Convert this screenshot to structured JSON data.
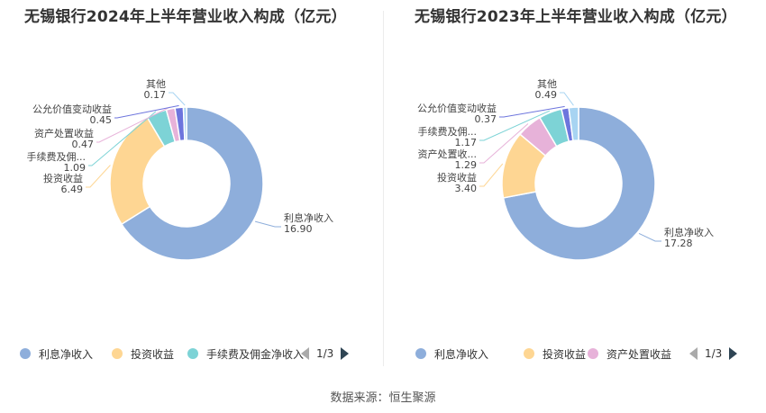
{
  "footer": {
    "source": "数据来源：恒生聚源"
  },
  "colors": {
    "利息净收入": "#8eaedb",
    "投资收益": "#fed693",
    "手续费及佣金净收入": "#7dd3d6",
    "资产处置收益": "#e7b2d9",
    "公允价值变动收益": "#6d75dd",
    "其他": "#a8d4f2"
  },
  "charts": [
    {
      "title": "无锡银行2024年上半年营业收入构成（亿元）",
      "legend": {
        "items": [
          "利息净收入",
          "投资收益",
          "手续费及佣金净收入"
        ],
        "page": "1/3"
      },
      "labels": [
        {
          "name": "利息净收入",
          "display": "利息净收入",
          "value": "16.90"
        },
        {
          "name": "投资收益",
          "display": "投资收益",
          "value": "6.49"
        },
        {
          "name": "手续费及佣金净收入",
          "display": "手续费及佣...",
          "value": "1.09"
        },
        {
          "name": "资产处置收益",
          "display": "资产处置收益",
          "value": "0.47"
        },
        {
          "name": "公允价值变动收益",
          "display": "公允价值变动收益",
          "value": "0.45"
        },
        {
          "name": "其他",
          "display": "其他",
          "value": "0.17"
        }
      ]
    },
    {
      "title": "无锡银行2023年上半年营业收入构成（亿元）",
      "legend": {
        "items": [
          "利息净收入",
          "投资收益",
          "资产处置收益"
        ],
        "page": "1/3"
      },
      "labels": [
        {
          "name": "利息净收入",
          "display": "利息净收入",
          "value": "17.28"
        },
        {
          "name": "投资收益",
          "display": "投资收益",
          "value": "3.40"
        },
        {
          "name": "资产处置收益",
          "display": "资产处置收...",
          "value": "1.29"
        },
        {
          "name": "手续费及佣金净收入",
          "display": "手续费及佣...",
          "value": "1.17"
        },
        {
          "name": "公允价值变动收益",
          "display": "公允价值变动收益",
          "value": "0.37"
        },
        {
          "name": "其他",
          "display": "其他",
          "value": "0.49"
        }
      ]
    }
  ],
  "chart_data": [
    {
      "type": "pie",
      "variant": "donut",
      "title": "无锡银行2024年上半年营业收入构成（亿元）",
      "categories": [
        "利息净收入",
        "投资收益",
        "手续费及佣金净收入",
        "资产处置收益",
        "公允价值变动收益",
        "其他"
      ],
      "values": [
        16.9,
        6.49,
        1.09,
        0.47,
        0.45,
        0.17
      ],
      "legend_position": "bottom"
    },
    {
      "type": "pie",
      "variant": "donut",
      "title": "无锡银行2023年上半年营业收入构成（亿元）",
      "categories": [
        "利息净收入",
        "投资收益",
        "资产处置收益",
        "手续费及佣金净收入",
        "公允价值变动收益",
        "其他"
      ],
      "values": [
        17.28,
        3.4,
        1.29,
        1.17,
        0.37,
        0.49
      ],
      "legend_position": "bottom"
    }
  ]
}
